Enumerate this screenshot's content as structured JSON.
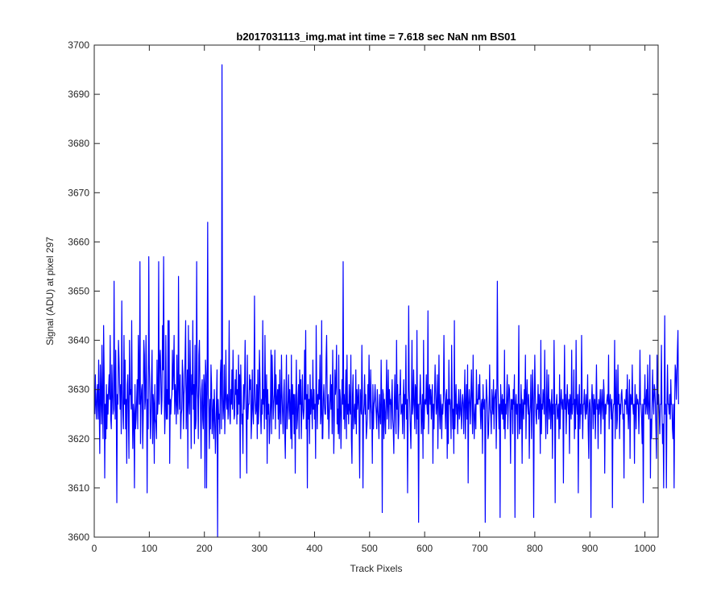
{
  "chart_data": {
    "type": "line",
    "title": "b2017031113_img.mat int time = 7.618 sec  NaN nm BS01",
    "xlabel": "Track Pixels",
    "ylabel": "Signal (ADU) at pixel 297",
    "xlim": [
      0,
      1024
    ],
    "ylim": [
      3600,
      3700
    ],
    "xticks": [
      0,
      100,
      200,
      300,
      400,
      500,
      600,
      700,
      800,
      900,
      1000
    ],
    "yticks": [
      3600,
      3610,
      3620,
      3630,
      3640,
      3650,
      3660,
      3670,
      3680,
      3690,
      3700
    ],
    "grid": false,
    "series": [
      {
        "color": "#0000ff",
        "x_start": 1,
        "x_step": 1,
        "values": [
          3625,
          3633,
          3627,
          3624,
          3629,
          3631,
          3624,
          3636,
          3627,
          3617,
          3635,
          3629,
          3623,
          3639,
          3627,
          3620,
          3643,
          3633,
          3612,
          3627,
          3620,
          3631,
          3622,
          3629,
          3625,
          3630,
          3633,
          3628,
          3641,
          3624,
          3622,
          3635,
          3630,
          3625,
          3626,
          3652,
          3631,
          3624,
          3638,
          3627,
          3607,
          3629,
          3627,
          3640,
          3636,
          3631,
          3626,
          3631,
          3621,
          3648,
          3630,
          3625,
          3622,
          3641,
          3627,
          3636,
          3622,
          3628,
          3615,
          3631,
          3633,
          3625,
          3616,
          3640,
          3629,
          3630,
          3626,
          3644,
          3627,
          3618,
          3627,
          3625,
          3610,
          3631,
          3622,
          3624,
          3628,
          3632,
          3622,
          3641,
          3633,
          3627,
          3656,
          3619,
          3627,
          3630,
          3631,
          3618,
          3625,
          3640,
          3637,
          3626,
          3628,
          3641,
          3632,
          3609,
          3628,
          3622,
          3657,
          3635,
          3629,
          3620,
          3624,
          3632,
          3638,
          3619,
          3629,
          3627,
          3615,
          3631,
          3624,
          3623,
          3620,
          3636,
          3625,
          3628,
          3656,
          3627,
          3636,
          3638,
          3632,
          3625,
          3628,
          3643,
          3634,
          3657,
          3631,
          3621,
          3626,
          3641,
          3624,
          3630,
          3624,
          3644,
          3627,
          3644,
          3615,
          3628,
          3625,
          3628,
          3629,
          3638,
          3630,
          3634,
          3641,
          3625,
          3631,
          3629,
          3623,
          3637,
          3627,
          3625,
          3653,
          3630,
          3626,
          3633,
          3620,
          3625,
          3626,
          3636,
          3633,
          3622,
          3629,
          3631,
          3637,
          3644,
          3622,
          3628,
          3634,
          3614,
          3643,
          3628,
          3625,
          3640,
          3631,
          3618,
          3633,
          3629,
          3644,
          3626,
          3631,
          3619,
          3639,
          3622,
          3624,
          3656,
          3631,
          3628,
          3620,
          3637,
          3640,
          3630,
          3626,
          3616,
          3630,
          3632,
          3624,
          3622,
          3633,
          3631,
          3610,
          3636,
          3633,
          3610,
          3631,
          3664,
          3629,
          3626,
          3618,
          3628,
          3622,
          3635,
          3631,
          3621,
          3625,
          3628,
          3620,
          3630,
          3625,
          3617,
          3622,
          3628,
          3634,
          3600,
          3628,
          3624,
          3625,
          3621,
          3633,
          3636,
          3622,
          3696,
          3629,
          3624,
          3627,
          3635,
          3621,
          3627,
          3638,
          3628,
          3626,
          3629,
          3624,
          3628,
          3644,
          3625,
          3623,
          3630,
          3627,
          3634,
          3626,
          3638,
          3630,
          3624,
          3625,
          3632,
          3629,
          3634,
          3623,
          3630,
          3625,
          3637,
          3627,
          3633,
          3612,
          3635,
          3629,
          3623,
          3625,
          3617,
          3631,
          3626,
          3631,
          3640,
          3629,
          3624,
          3613,
          3637,
          3624,
          3627,
          3627,
          3633,
          3630,
          3632,
          3620,
          3624,
          3634,
          3626,
          3623,
          3630,
          3649,
          3628,
          3625,
          3626,
          3631,
          3620,
          3634,
          3623,
          3627,
          3638,
          3632,
          3625,
          3621,
          3628,
          3625,
          3644,
          3627,
          3630,
          3622,
          3641,
          3629,
          3624,
          3633,
          3615,
          3630,
          3625,
          3627,
          3619,
          3623,
          3627,
          3638,
          3621,
          3637,
          3631,
          3624,
          3627,
          3629,
          3638,
          3622,
          3633,
          3627,
          3627,
          3630,
          3624,
          3631,
          3620,
          3634,
          3626,
          3623,
          3637,
          3629,
          3625,
          3621,
          3629,
          3632,
          3621,
          3616,
          3627,
          3637,
          3622,
          3625,
          3628,
          3633,
          3624,
          3630,
          3626,
          3620,
          3637,
          3618,
          3631,
          3625,
          3629,
          3621,
          3629,
          3613,
          3627,
          3636,
          3622,
          3624,
          3628,
          3631,
          3620,
          3634,
          3627,
          3632,
          3620,
          3626,
          3633,
          3626,
          3624,
          3626,
          3638,
          3628,
          3642,
          3622,
          3629,
          3610,
          3631,
          3624,
          3628,
          3619,
          3633,
          3625,
          3630,
          3627,
          3622,
          3636,
          3626,
          3630,
          3624,
          3627,
          3616,
          3643,
          3629,
          3622,
          3629,
          3627,
          3632,
          3628,
          3637,
          3623,
          3625,
          3644,
          3620,
          3620,
          3628,
          3631,
          3627,
          3625,
          3625,
          3636,
          3641,
          3629,
          3624,
          3629,
          3620,
          3625,
          3628,
          3633,
          3626,
          3631,
          3621,
          3638,
          3629,
          3617,
          3624,
          3634,
          3629,
          3631,
          3639,
          3623,
          3626,
          3621,
          3637,
          3620,
          3630,
          3628,
          3618,
          3625,
          3632,
          3627,
          3656,
          3624,
          3629,
          3622,
          3628,
          3634,
          3620,
          3637,
          3625,
          3627,
          3623,
          3631,
          3626,
          3625,
          3637,
          3620,
          3615,
          3629,
          3633,
          3622,
          3625,
          3627,
          3623,
          3634,
          3621,
          3630,
          3626,
          3628,
          3631,
          3623,
          3612,
          3630,
          3627,
          3625,
          3639,
          3629,
          3610,
          3625,
          3627,
          3633,
          3625,
          3629,
          3620,
          3622,
          3624,
          3631,
          3626,
          3637,
          3628,
          3622,
          3634,
          3627,
          3625,
          3615,
          3631,
          3622,
          3627,
          3628,
          3631,
          3627,
          3625,
          3622,
          3630,
          3626,
          3624,
          3620,
          3629,
          3625,
          3623,
          3636,
          3627,
          3605,
          3630,
          3629,
          3620,
          3628,
          3625,
          3621,
          3628,
          3636,
          3624,
          3627,
          3634,
          3622,
          3630,
          3627,
          3628,
          3622,
          3628,
          3632,
          3624,
          3622,
          3617,
          3628,
          3633,
          3625,
          3621,
          3640,
          3626,
          3631,
          3620,
          3623,
          3629,
          3629,
          3634,
          3625,
          3626,
          3627,
          3621,
          3628,
          3632,
          3620,
          3629,
          3627,
          3639,
          3624,
          3628,
          3609,
          3625,
          3647,
          3630,
          3627,
          3622,
          3618,
          3627,
          3640,
          3625,
          3627,
          3634,
          3627,
          3622,
          3631,
          3630,
          3621,
          3642,
          3624,
          3627,
          3603,
          3627,
          3627,
          3633,
          3628,
          3621,
          3625,
          3629,
          3616,
          3640,
          3622,
          3627,
          3628,
          3627,
          3633,
          3627,
          3625,
          3646,
          3621,
          3629,
          3631,
          3627,
          3630,
          3624,
          3628,
          3631,
          3615,
          3627,
          3622,
          3629,
          3635,
          3629,
          3625,
          3627,
          3633,
          3618,
          3627,
          3637,
          3625,
          3622,
          3629,
          3626,
          3620,
          3627,
          3625,
          3628,
          3641,
          3629,
          3627,
          3622,
          3629,
          3630,
          3616,
          3628,
          3619,
          3636,
          3627,
          3628,
          3625,
          3620,
          3639,
          3628,
          3622,
          3626,
          3617,
          3644,
          3622,
          3627,
          3631,
          3625,
          3627,
          3621,
          3627,
          3630,
          3624,
          3625,
          3630,
          3626,
          3622,
          3627,
          3629,
          3627,
          3621,
          3628,
          3634,
          3620,
          3627,
          3631,
          3624,
          3635,
          3611,
          3627,
          3630,
          3627,
          3623,
          3629,
          3634,
          3627,
          3621,
          3637,
          3626,
          3620,
          3625,
          3627,
          3622,
          3634,
          3627,
          3628,
          3627,
          3631,
          3628,
          3633,
          3626,
          3622,
          3627,
          3628,
          3617,
          3631,
          3627,
          3626,
          3628,
          3603,
          3623,
          3632,
          3629,
          3627,
          3620,
          3621,
          3627,
          3635,
          3626,
          3625,
          3621,
          3630,
          3627,
          3625,
          3632,
          3622,
          3628,
          3629,
          3630,
          3618,
          3627,
          3652,
          3631,
          3627,
          3622,
          3627,
          3604,
          3631,
          3627,
          3625,
          3629,
          3624,
          3628,
          3622,
          3638,
          3620,
          3627,
          3625,
          3629,
          3633,
          3622,
          3627,
          3631,
          3630,
          3625,
          3615,
          3628,
          3626,
          3628,
          3621,
          3630,
          3627,
          3633,
          3604,
          3627,
          3629,
          3625,
          3627,
          3620,
          3629,
          3643,
          3621,
          3627,
          3622,
          3631,
          3627,
          3615,
          3628,
          3627,
          3624,
          3630,
          3627,
          3637,
          3620,
          3628,
          3632,
          3627,
          3625,
          3629,
          3616,
          3625,
          3627,
          3633,
          3620,
          3627,
          3634,
          3628,
          3604,
          3627,
          3637,
          3629,
          3625,
          3623,
          3627,
          3626,
          3631,
          3624,
          3629,
          3627,
          3617,
          3640,
          3621,
          3627,
          3626,
          3630,
          3628,
          3625,
          3638,
          3627,
          3620,
          3627,
          3634,
          3621,
          3627,
          3633,
          3624,
          3628,
          3627,
          3622,
          3627,
          3630,
          3616,
          3627,
          3625,
          3640,
          3628,
          3607,
          3627,
          3627,
          3629,
          3624,
          3625,
          3627,
          3620,
          3633,
          3622,
          3627,
          3630,
          3627,
          3626,
          3628,
          3611,
          3627,
          3639,
          3626,
          3629,
          3621,
          3627,
          3631,
          3627,
          3625,
          3628,
          3617,
          3629,
          3627,
          3624,
          3638,
          3625,
          3627,
          3627,
          3634,
          3620,
          3628,
          3622,
          3640,
          3627,
          3625,
          3629,
          3609,
          3627,
          3631,
          3622,
          3627,
          3625,
          3641,
          3628,
          3620,
          3627,
          3627,
          3630,
          3626,
          3624,
          3629,
          3625,
          3627,
          3633,
          3622,
          3616,
          3627,
          3628,
          3625,
          3604,
          3627,
          3631,
          3627,
          3622,
          3629,
          3625,
          3628,
          3620,
          3627,
          3635,
          3626,
          3627,
          3618,
          3628,
          3625,
          3627,
          3630,
          3621,
          3627,
          3630,
          3626,
          3624,
          3632,
          3629,
          3613,
          3627,
          3625,
          3627,
          3628,
          3629,
          3627,
          3637,
          3622,
          3627,
          3629,
          3627,
          3624,
          3628,
          3606,
          3625,
          3627,
          3627,
          3640,
          3620,
          3628,
          3634,
          3622,
          3624,
          3635,
          3627,
          3629,
          3620,
          3627,
          3625,
          3629,
          3630,
          3627,
          3624,
          3625,
          3612,
          3628,
          3627,
          3627,
          3630,
          3625,
          3633,
          3626,
          3622,
          3627,
          3632,
          3616,
          3629,
          3627,
          3627,
          3635,
          3627,
          3625,
          3627,
          3615,
          3631,
          3627,
          3622,
          3629,
          3627,
          3628,
          3627,
          3621,
          3627,
          3638,
          3627,
          3627,
          3624,
          3619,
          3627,
          3607,
          3628,
          3627,
          3633,
          3625,
          3627,
          3630,
          3625,
          3635,
          3627,
          3624,
          3628,
          3637,
          3612,
          3624,
          3620,
          3627,
          3634,
          3628,
          3625,
          3631,
          3630,
          3627,
          3622,
          3616,
          3637,
          3627,
          3627,
          3629,
          3625,
          3621,
          3627,
          3627,
          3639,
          3625,
          3619,
          3623,
          3610,
          3627,
          3645,
          3625,
          3627,
          3610,
          3627,
          3635,
          3627,
          3627,
          3625,
          3629,
          3624,
          3632,
          3627,
          3627,
          3622,
          3620,
          3627,
          3610,
          3627,
          3635,
          3634,
          3628,
          3632,
          3638,
          3642,
          3627
        ]
      }
    ]
  }
}
